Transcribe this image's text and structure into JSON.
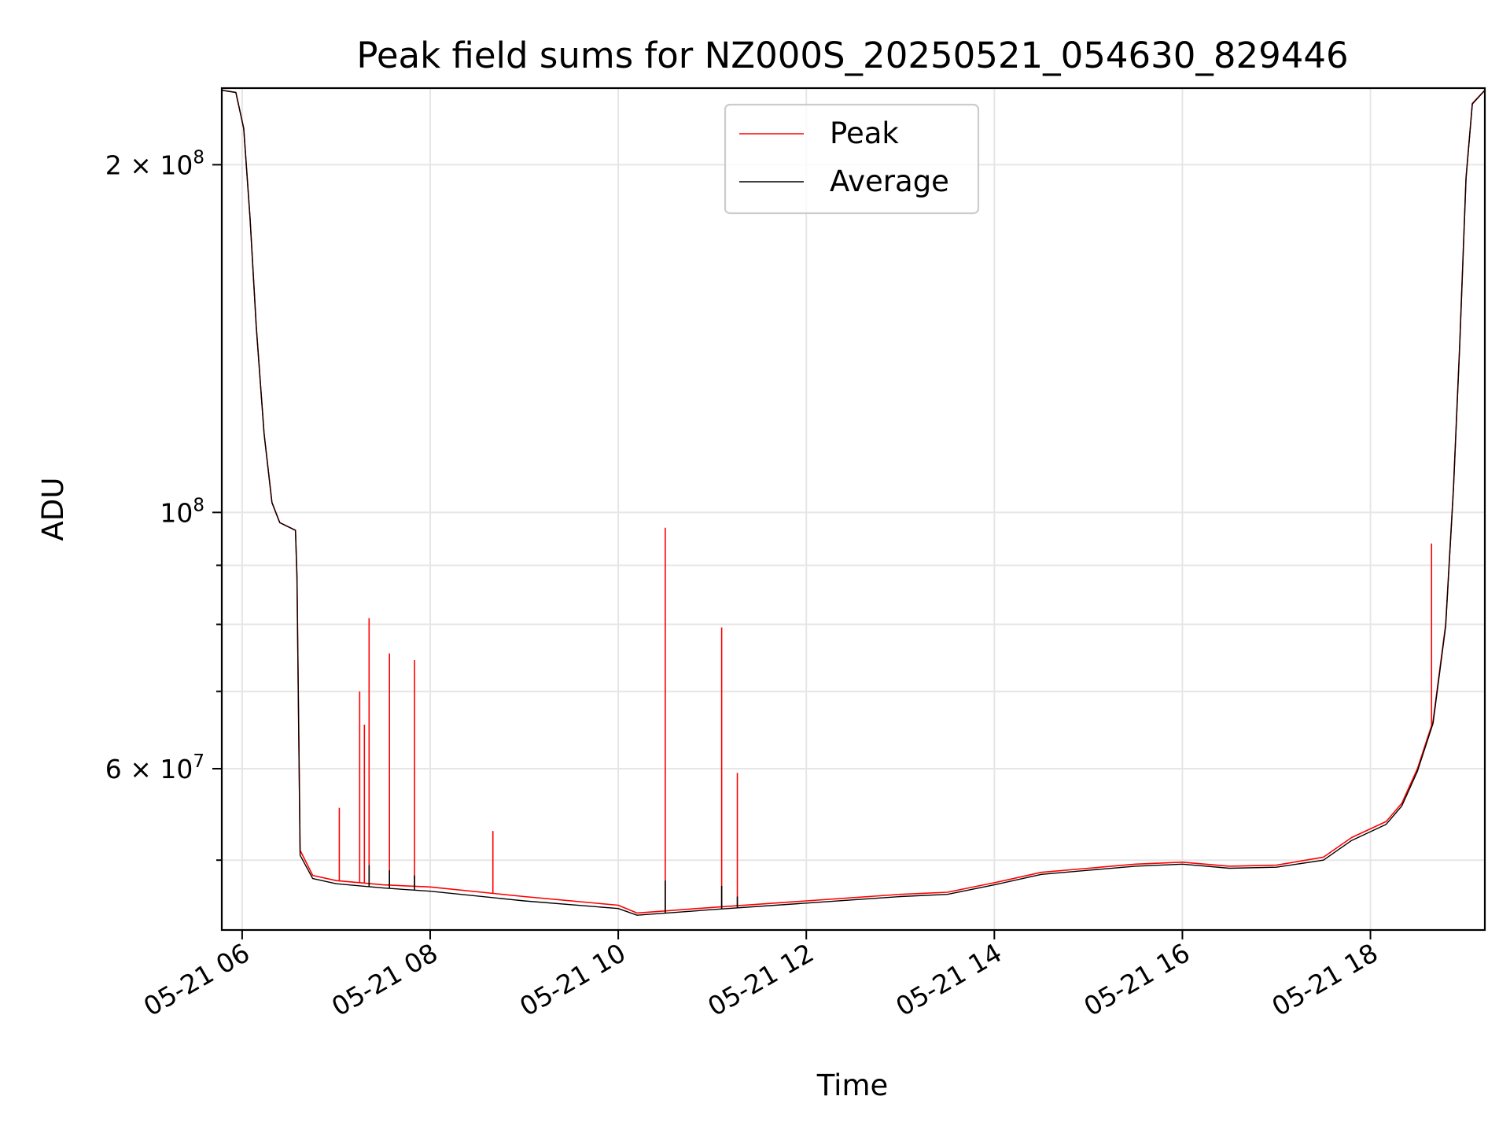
{
  "chart_data": {
    "type": "line",
    "title": "Peak field sums for NZ000S_20250521_054630_829446",
    "xlabel": "Time",
    "ylabel": "ADU",
    "yscale": "log",
    "xlim": [
      "2025-05-21 05:47",
      "2025-05-21 19:13"
    ],
    "ylim": [
      43500000,
      233000000
    ],
    "grid": true,
    "legend_position": "upper center",
    "x_ticks": [
      {
        "value": "2025-05-21 06:00",
        "label": "05-21 06"
      },
      {
        "value": "2025-05-21 08:00",
        "label": "05-21 08"
      },
      {
        "value": "2025-05-21 10:00",
        "label": "05-21 10"
      },
      {
        "value": "2025-05-21 12:00",
        "label": "05-21 12"
      },
      {
        "value": "2025-05-21 14:00",
        "label": "05-21 14"
      },
      {
        "value": "2025-05-21 16:00",
        "label": "05-21 16"
      },
      {
        "value": "2025-05-21 18:00",
        "label": "05-21 18"
      }
    ],
    "y_major_ticks": [
      {
        "value": 200000000,
        "label_base": "2 × 10",
        "label_exp": "8"
      },
      {
        "value": 100000000,
        "label_base": "10",
        "label_exp": "8"
      },
      {
        "value": 60000000,
        "label_base": "6 × 10",
        "label_exp": "7"
      }
    ],
    "y_minor_ticks": [
      50000000,
      70000000,
      80000000,
      90000000
    ],
    "series": [
      {
        "name": "Peak",
        "color": "#ff0000",
        "baseline": [
          [
            "2025-05-21 05:47",
            232000000
          ],
          [
            "2025-05-21 05:56",
            231000000
          ],
          [
            "2025-05-21 06:01",
            215000000
          ],
          [
            "2025-05-21 06:05",
            180000000
          ],
          [
            "2025-05-21 06:09",
            145000000
          ],
          [
            "2025-05-21 06:14",
            117000000
          ],
          [
            "2025-05-21 06:19",
            102000000
          ],
          [
            "2025-05-21 06:24",
            98000000
          ],
          [
            "2025-05-21 06:34",
            96500000
          ],
          [
            "2025-05-21 06:35",
            88000000
          ],
          [
            "2025-05-21 06:37",
            51000000
          ],
          [
            "2025-05-21 06:45",
            48500000
          ],
          [
            "2025-05-21 07:00",
            48000000
          ],
          [
            "2025-05-21 07:30",
            47600000
          ],
          [
            "2025-05-21 08:00",
            47400000
          ],
          [
            "2025-05-21 09:00",
            46500000
          ],
          [
            "2025-05-21 10:00",
            45700000
          ],
          [
            "2025-05-21 10:12",
            45000000
          ],
          [
            "2025-05-21 11:00",
            45500000
          ],
          [
            "2025-05-21 12:00",
            46100000
          ],
          [
            "2025-05-21 13:00",
            46700000
          ],
          [
            "2025-05-21 13:30",
            46900000
          ],
          [
            "2025-05-21 14:00",
            47800000
          ],
          [
            "2025-05-21 14:30",
            48800000
          ],
          [
            "2025-05-21 15:00",
            49200000
          ],
          [
            "2025-05-21 15:30",
            49600000
          ],
          [
            "2025-05-21 16:00",
            49800000
          ],
          [
            "2025-05-21 16:30",
            49400000
          ],
          [
            "2025-05-21 17:00",
            49500000
          ],
          [
            "2025-05-21 17:30",
            50300000
          ],
          [
            "2025-05-21 17:48",
            52300000
          ],
          [
            "2025-05-21 18:10",
            54000000
          ],
          [
            "2025-05-21 18:20",
            56000000
          ],
          [
            "2025-05-21 18:30",
            60000000
          ],
          [
            "2025-05-21 18:40",
            66000000
          ],
          [
            "2025-05-21 18:48",
            80000000
          ],
          [
            "2025-05-21 18:53",
            105000000
          ],
          [
            "2025-05-21 18:57",
            140000000
          ],
          [
            "2025-05-21 19:01",
            195000000
          ],
          [
            "2025-05-21 19:05",
            226000000
          ],
          [
            "2025-05-21 19:13",
            232000000
          ]
        ],
        "spikes": [
          [
            "2025-05-21 07:02",
            55500000
          ],
          [
            "2025-05-21 07:15",
            70000000
          ],
          [
            "2025-05-21 07:18",
            65500000
          ],
          [
            "2025-05-21 07:21",
            81000000
          ],
          [
            "2025-05-21 07:34",
            75500000
          ],
          [
            "2025-05-21 07:50",
            74500000
          ],
          [
            "2025-05-21 08:40",
            53000000
          ],
          [
            "2025-05-21 10:30",
            97000000
          ],
          [
            "2025-05-21 11:06",
            79500000
          ],
          [
            "2025-05-21 11:16",
            59500000
          ],
          [
            "2025-05-21 18:39",
            94000000
          ]
        ]
      },
      {
        "name": "Average",
        "color": "#000000",
        "baseline": [
          [
            "2025-05-21 05:47",
            232000000
          ],
          [
            "2025-05-21 05:56",
            231000000
          ],
          [
            "2025-05-21 06:01",
            215000000
          ],
          [
            "2025-05-21 06:05",
            180000000
          ],
          [
            "2025-05-21 06:09",
            145000000
          ],
          [
            "2025-05-21 06:14",
            117000000
          ],
          [
            "2025-05-21 06:19",
            102000000
          ],
          [
            "2025-05-21 06:24",
            98000000
          ],
          [
            "2025-05-21 06:34",
            96500000
          ],
          [
            "2025-05-21 06:35",
            88000000
          ],
          [
            "2025-05-21 06:37",
            50500000
          ],
          [
            "2025-05-21 06:45",
            48200000
          ],
          [
            "2025-05-21 07:00",
            47700000
          ],
          [
            "2025-05-21 07:30",
            47300000
          ],
          [
            "2025-05-21 08:00",
            47000000
          ],
          [
            "2025-05-21 09:00",
            46100000
          ],
          [
            "2025-05-21 10:00",
            45400000
          ],
          [
            "2025-05-21 10:12",
            44800000
          ],
          [
            "2025-05-21 11:00",
            45300000
          ],
          [
            "2025-05-21 12:00",
            45900000
          ],
          [
            "2025-05-21 13:00",
            46500000
          ],
          [
            "2025-05-21 13:30",
            46700000
          ],
          [
            "2025-05-21 14:00",
            47600000
          ],
          [
            "2025-05-21 14:30",
            48600000
          ],
          [
            "2025-05-21 15:00",
            49000000
          ],
          [
            "2025-05-21 15:30",
            49400000
          ],
          [
            "2025-05-21 16:00",
            49600000
          ],
          [
            "2025-05-21 16:30",
            49200000
          ],
          [
            "2025-05-21 17:00",
            49300000
          ],
          [
            "2025-05-21 17:30",
            50000000
          ],
          [
            "2025-05-21 17:48",
            52000000
          ],
          [
            "2025-05-21 18:10",
            53700000
          ],
          [
            "2025-05-21 18:20",
            55700000
          ],
          [
            "2025-05-21 18:30",
            59700000
          ],
          [
            "2025-05-21 18:40",
            65700000
          ],
          [
            "2025-05-21 18:48",
            79700000
          ],
          [
            "2025-05-21 18:53",
            104700000
          ],
          [
            "2025-05-21 18:57",
            139700000
          ],
          [
            "2025-05-21 19:01",
            194700000
          ],
          [
            "2025-05-21 19:05",
            225700000
          ],
          [
            "2025-05-21 19:13",
            232000000
          ]
        ],
        "spikes": [
          [
            "2025-05-21 07:21",
            49500000
          ],
          [
            "2025-05-21 07:34",
            49000000
          ],
          [
            "2025-05-21 07:50",
            48500000
          ],
          [
            "2025-05-21 10:30",
            48000000
          ],
          [
            "2025-05-21 11:06",
            47500000
          ],
          [
            "2025-05-21 11:16",
            46500000
          ]
        ]
      }
    ]
  }
}
